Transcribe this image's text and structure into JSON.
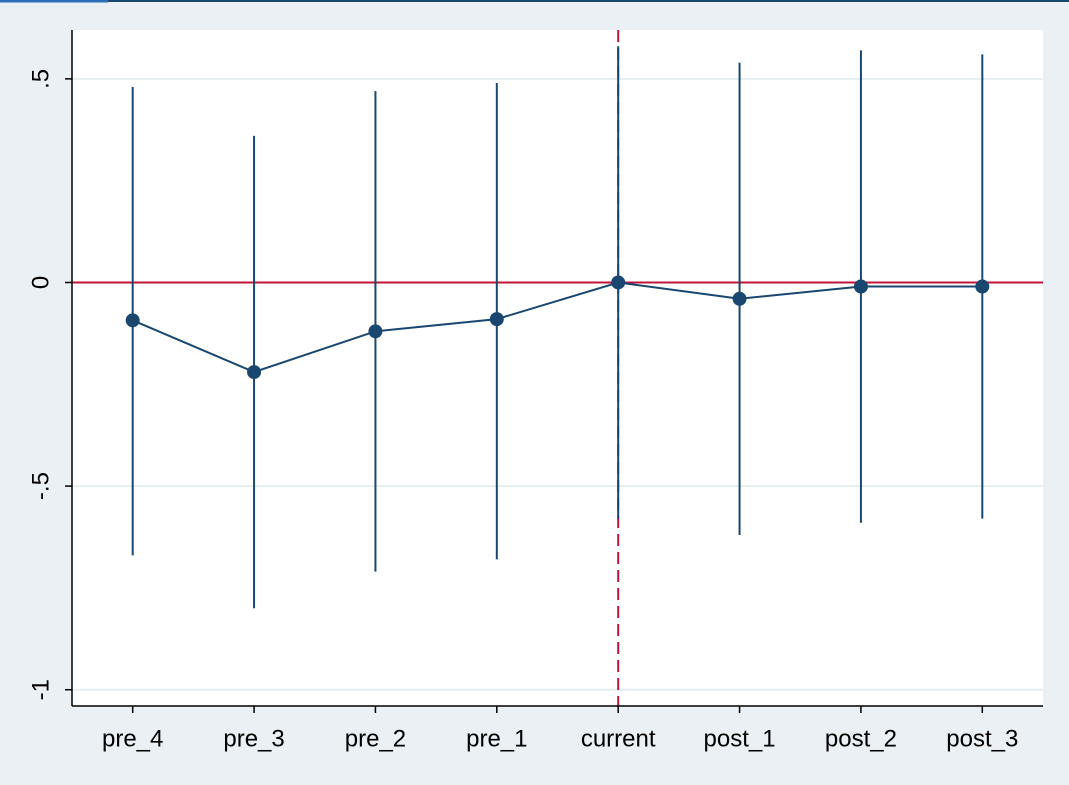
{
  "chart_data": {
    "type": "coefplot",
    "categories": [
      "pre_4",
      "pre_3",
      "pre_2",
      "pre_1",
      "current",
      "post_1",
      "post_2",
      "post_3"
    ],
    "values": [
      -0.093,
      -0.22,
      -0.12,
      -0.09,
      0,
      -0.04,
      -0.01,
      -0.01
    ],
    "lower": [
      -0.67,
      -0.8,
      -0.71,
      -0.68,
      -0.58,
      -0.62,
      -0.59,
      -0.58
    ],
    "upper": [
      0.48,
      0.36,
      0.47,
      0.49,
      0.58,
      0.54,
      0.57,
      0.56
    ],
    "color": "#1a476f",
    "ylim": [
      -1.04,
      0.62
    ],
    "yticks": [
      {
        "value": 0.5,
        "label": ".5"
      },
      0,
      {
        "value": -0.5,
        "label": "-.5"
      },
      -1
    ],
    "grid": true,
    "reference_y": 0,
    "reference_x": "current",
    "reference_color": "#c0143c"
  }
}
